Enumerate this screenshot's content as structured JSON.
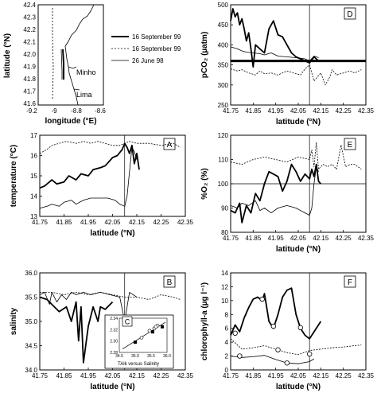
{
  "legend": {
    "entries": [
      {
        "label": "16 September 99",
        "style": "thick"
      },
      {
        "label": "16 September 99",
        "style": "dotted"
      },
      {
        "label": "26 June 98",
        "style": "thin"
      }
    ]
  },
  "map": {
    "xlabel": "longitude (°E)",
    "ylabel": "latitude (°N)",
    "xticks": [
      "-9.2",
      "-9",
      "-8.8",
      "-8.6"
    ],
    "yticks": [
      "42.4",
      "42.3",
      "42.2",
      "42.1",
      "42.0",
      "41.9",
      "41.8",
      "41.7",
      "41.6"
    ],
    "places": [
      "Minho",
      "Lima"
    ]
  },
  "chart_data": [
    {
      "panel": "A",
      "type": "line",
      "ylabel": "temperature (°C)",
      "xlabel": "latitude (°N)",
      "xlim": [
        41.75,
        42.35
      ],
      "ylim": [
        13,
        17
      ],
      "xticks": [
        "41.75",
        "41.85",
        "41.95",
        "42.05",
        "42.15",
        "42.25",
        "42.35"
      ],
      "yticks": [
        "17",
        "16",
        "15",
        "14",
        "13"
      ],
      "vline": 42.1,
      "series": [
        {
          "style": "dotted",
          "x": [
            41.75,
            41.78,
            41.8,
            41.83,
            41.86,
            41.9,
            41.93,
            41.96,
            41.99,
            42.02,
            42.05,
            42.08,
            42.1,
            42.12,
            42.15,
            42.2,
            42.25,
            42.3,
            42.33
          ],
          "y": [
            16.1,
            16.3,
            16.5,
            16.6,
            16.7,
            16.6,
            16.7,
            16.6,
            16.7,
            16.6,
            16.5,
            16.5,
            16.6,
            16.7,
            16.6,
            16.6,
            16.5,
            16.6,
            16.4
          ]
        },
        {
          "style": "thick",
          "x": [
            41.75,
            41.77,
            41.8,
            41.82,
            41.85,
            41.87,
            41.9,
            41.92,
            41.95,
            41.97,
            42.0,
            42.02,
            42.05,
            42.07,
            42.09,
            42.1,
            42.11,
            42.12,
            42.13,
            42.14,
            42.15,
            42.16
          ],
          "y": [
            14.4,
            14.5,
            14.8,
            14.6,
            14.7,
            15.0,
            14.8,
            15.1,
            15.0,
            15.3,
            15.4,
            15.5,
            15.9,
            16.0,
            16.3,
            16.6,
            16.4,
            16.1,
            16.5,
            15.6,
            16.1,
            15.3
          ]
        },
        {
          "style": "thin",
          "x": [
            41.75,
            41.78,
            41.8,
            41.83,
            41.85,
            41.88,
            41.9,
            41.93,
            41.96,
            42.0,
            42.03,
            42.06,
            42.08,
            42.1,
            42.11,
            42.12,
            42.13,
            42.14,
            42.15
          ],
          "y": [
            13.4,
            13.5,
            13.6,
            13.5,
            13.7,
            13.8,
            13.6,
            13.8,
            13.9,
            13.9,
            13.9,
            13.8,
            13.6,
            13.5,
            14.0,
            15.2,
            16.4,
            16.2,
            15.8
          ]
        }
      ]
    },
    {
      "panel": "B",
      "type": "line",
      "ylabel": "salinity",
      "xlabel": "latitude (°N)",
      "xlim": [
        41.75,
        42.35
      ],
      "ylim": [
        34.0,
        36.0
      ],
      "xticks": [
        "41.75",
        "41.85",
        "41.95",
        "42.05",
        "42.15",
        "42.25",
        "42.35"
      ],
      "yticks": [
        "36.0",
        "35.5",
        "35.0",
        "34.5",
        "34.0"
      ],
      "vline": 42.1,
      "series": [
        {
          "style": "thin",
          "x": [
            41.75,
            41.77,
            41.79,
            41.8,
            41.82,
            41.84,
            41.86,
            41.88,
            41.9,
            41.93,
            41.96,
            42.0,
            42.04,
            42.08,
            42.1,
            42.12,
            42.15
          ],
          "y": [
            35.55,
            35.6,
            35.35,
            35.6,
            35.4,
            35.55,
            35.45,
            35.6,
            35.55,
            35.6,
            35.55,
            35.6,
            35.55,
            35.5,
            35.0,
            35.6,
            35.5
          ]
        },
        {
          "style": "thick",
          "x": [
            41.75,
            41.78,
            41.8,
            41.83,
            41.86,
            41.88,
            41.9,
            41.91,
            41.92,
            41.93,
            41.95,
            41.97,
            41.99,
            42.0,
            42.02,
            42.05
          ],
          "y": [
            35.5,
            35.45,
            35.35,
            35.2,
            35.3,
            35.0,
            35.4,
            34.6,
            35.3,
            34.15,
            34.9,
            35.3,
            35.0,
            35.3,
            35.25,
            35.4
          ]
        },
        {
          "style": "dotted",
          "x": [
            41.75,
            41.8,
            41.85,
            41.9,
            41.95,
            42.0,
            42.05,
            42.1,
            42.15,
            42.2,
            42.25,
            42.3,
            42.33
          ],
          "y": [
            35.6,
            35.6,
            35.55,
            35.6,
            35.55,
            35.6,
            35.55,
            35.5,
            35.5,
            35.45,
            35.55,
            35.5,
            35.45
          ]
        }
      ],
      "inset": {
        "panel": "C",
        "title": "TAlk versus Salinity",
        "xlim": [
          34.5,
          36.0
        ],
        "ylim": [
          2.28,
          2.34
        ],
        "xticks": [
          "34.5",
          "35.0",
          "35.5",
          "36.0"
        ],
        "yticks": [
          "2.34",
          "2.32",
          "2.30",
          "2.28"
        ],
        "fit_line": {
          "x": [
            34.6,
            35.95
          ],
          "y": [
            2.286,
            2.333
          ]
        },
        "open_points": [
          {
            "x": 35.2,
            "y": 2.306
          },
          {
            "x": 35.45,
            "y": 2.318
          },
          {
            "x": 35.6,
            "y": 2.322
          },
          {
            "x": 35.7,
            "y": 2.327
          },
          {
            "x": 35.65,
            "y": 2.325
          }
        ],
        "filled_points": [
          {
            "x": 35.0,
            "y": 2.298
          },
          {
            "x": 35.55,
            "y": 2.316
          },
          {
            "x": 35.85,
            "y": 2.325
          }
        ]
      }
    },
    {
      "panel": "D",
      "type": "line",
      "ylabel": "pCO₂ (µatm)",
      "xlabel": "latitude (°N)",
      "xlim": [
        41.75,
        42.35
      ],
      "ylim": [
        250,
        500
      ],
      "xticks": [
        "41.75",
        "41.85",
        "41.95",
        "42.05",
        "42.15",
        "42.25",
        "42.35"
      ],
      "yticks": [
        "500",
        "450",
        "400",
        "350",
        "300",
        "250"
      ],
      "vline": 42.1,
      "hline": 360,
      "series": [
        {
          "style": "thick",
          "x": [
            41.75,
            41.76,
            41.77,
            41.78,
            41.79,
            41.8,
            41.81,
            41.82,
            41.83,
            41.84,
            41.85,
            41.86,
            41.88,
            41.9,
            41.92,
            41.94,
            41.96,
            41.98,
            42.0,
            42.02,
            42.04,
            42.06,
            42.08,
            42.1,
            42.12,
            42.14
          ],
          "y": [
            460,
            490,
            470,
            480,
            450,
            465,
            440,
            410,
            430,
            390,
            345,
            400,
            390,
            380,
            440,
            460,
            425,
            420,
            400,
            380,
            370,
            365,
            360,
            355,
            370,
            360
          ]
        },
        {
          "style": "thin",
          "x": [
            41.75,
            41.78,
            41.8,
            41.82,
            41.85,
            41.88,
            41.9,
            41.93,
            41.96,
            42.0,
            42.04,
            42.08,
            42.1,
            42.12,
            42.14
          ],
          "y": [
            395,
            390,
            385,
            382,
            380,
            378,
            375,
            380,
            372,
            370,
            368,
            365,
            360,
            372,
            368
          ]
        },
        {
          "style": "dotted",
          "x": [
            41.75,
            41.78,
            41.8,
            41.83,
            41.86,
            41.88,
            41.9,
            41.93,
            41.96,
            42.0,
            42.03,
            42.06,
            42.08,
            42.1,
            42.12,
            42.15,
            42.17,
            42.19,
            42.2,
            42.22,
            42.25,
            42.28,
            42.3,
            42.33
          ],
          "y": [
            340,
            335,
            338,
            330,
            325,
            335,
            328,
            330,
            325,
            335,
            330,
            325,
            340,
            350,
            310,
            330,
            300,
            320,
            338,
            325,
            330,
            335,
            330,
            338
          ]
        },
        {
          "style": "bold-reference",
          "x": [
            41.75,
            42.35
          ],
          "y": [
            360,
            360
          ]
        }
      ]
    },
    {
      "panel": "E",
      "type": "line",
      "ylabel": "%O₂ (%)",
      "xlabel": "latitude (°N)",
      "xlim": [
        41.75,
        42.35
      ],
      "ylim": [
        80,
        120
      ],
      "xticks": [
        "41.75",
        "41.85",
        "41.95",
        "42.05",
        "42.15",
        "42.25",
        "42.35"
      ],
      "yticks": [
        "120",
        "110",
        "100",
        "90",
        "80"
      ],
      "vline": 42.1,
      "hline": 100,
      "series": [
        {
          "style": "dotted",
          "x": [
            41.75,
            41.8,
            41.85,
            41.9,
            41.95,
            42.0,
            42.05,
            42.1,
            42.11,
            42.12,
            42.13,
            42.14,
            42.16,
            42.18,
            42.2,
            42.22,
            42.24,
            42.26,
            42.28,
            42.3,
            42.33
          ],
          "y": [
            109,
            108,
            110,
            111,
            110,
            109,
            111,
            110,
            114,
            107,
            117,
            106,
            108,
            107,
            108,
            106,
            116,
            107,
            108,
            108,
            106
          ]
        },
        {
          "style": "thick",
          "x": [
            41.75,
            41.77,
            41.79,
            41.8,
            41.82,
            41.84,
            41.86,
            41.88,
            41.9,
            41.92,
            41.94,
            41.96,
            41.98,
            42.0,
            42.02,
            42.04,
            42.06,
            42.08,
            42.1,
            42.11,
            42.12,
            42.13,
            42.14,
            42.15
          ],
          "y": [
            89,
            88,
            92,
            84,
            91,
            88,
            96,
            93,
            100,
            105,
            104,
            103,
            97,
            101,
            108,
            105,
            101,
            104,
            102,
            106,
            103,
            108,
            101,
            100
          ]
        },
        {
          "style": "thin",
          "x": [
            41.75,
            41.78,
            41.8,
            41.83,
            41.86,
            41.88,
            41.9,
            41.93,
            41.96,
            42.0,
            42.04,
            42.08,
            42.1,
            42.11,
            42.12,
            42.13,
            42.14
          ],
          "y": [
            91,
            90,
            92,
            91,
            93,
            89,
            90,
            88,
            90,
            91,
            90,
            88,
            87,
            90,
            100,
            107,
            105
          ]
        }
      ]
    },
    {
      "panel": "F",
      "type": "line",
      "ylabel": "chlorophyll-a (µg l⁻¹)",
      "xlabel": "latitude (°N)",
      "xlim": [
        41.75,
        42.35
      ],
      "ylim": [
        0,
        14
      ],
      "xticks": [
        "41.75",
        "41.85",
        "41.95",
        "42.05",
        "42.15",
        "42.25",
        "42.35"
      ],
      "yticks": [
        "14",
        "12",
        "10",
        "8",
        "6",
        "4",
        "2",
        "0"
      ],
      "vline": 42.1,
      "series": [
        {
          "style": "thick",
          "x": [
            41.75,
            41.77,
            41.79,
            41.81,
            41.83,
            41.85,
            41.87,
            41.89,
            41.9,
            41.92,
            41.94,
            41.96,
            41.98,
            42.0,
            42.02,
            42.04,
            42.06,
            42.08,
            42.1,
            42.12,
            42.14,
            42.15
          ],
          "y": [
            5.0,
            6.5,
            5.5,
            7.5,
            9.0,
            10.2,
            10.5,
            10.0,
            11.0,
            7.0,
            6.0,
            8.0,
            10.5,
            11.5,
            11.8,
            8.0,
            6.0,
            5.0,
            4.5,
            5.5,
            6.5,
            7.0
          ]
        },
        {
          "style": "dotted",
          "x": [
            41.75,
            41.8,
            41.85,
            41.9,
            41.95,
            42.0,
            42.05,
            42.1,
            42.15,
            42.2,
            42.25,
            42.3,
            42.33
          ],
          "y": [
            4.5,
            3.0,
            3.2,
            3.5,
            3.0,
            2.5,
            2.2,
            2.8,
            3.0,
            3.2,
            3.3,
            3.5,
            3.6
          ]
        },
        {
          "style": "thin",
          "x": [
            41.75,
            41.8,
            41.85,
            41.9,
            41.95,
            42.0,
            42.05,
            42.1,
            42.12
          ],
          "y": [
            2.0,
            1.8,
            1.9,
            2.1,
            1.5,
            1.0,
            0.9,
            1.2,
            1.6
          ]
        }
      ],
      "circles": [
        {
          "x": 41.77,
          "y": 5.3
        },
        {
          "x": 41.89,
          "y": 10.2
        },
        {
          "x": 41.94,
          "y": 6.3
        },
        {
          "x": 42.06,
          "y": 6.1
        },
        {
          "x": 41.79,
          "y": 2.0
        },
        {
          "x": 41.96,
          "y": 2.9
        },
        {
          "x": 42.0,
          "y": 1.0
        },
        {
          "x": 42.1,
          "y": 2.3
        }
      ]
    }
  ]
}
